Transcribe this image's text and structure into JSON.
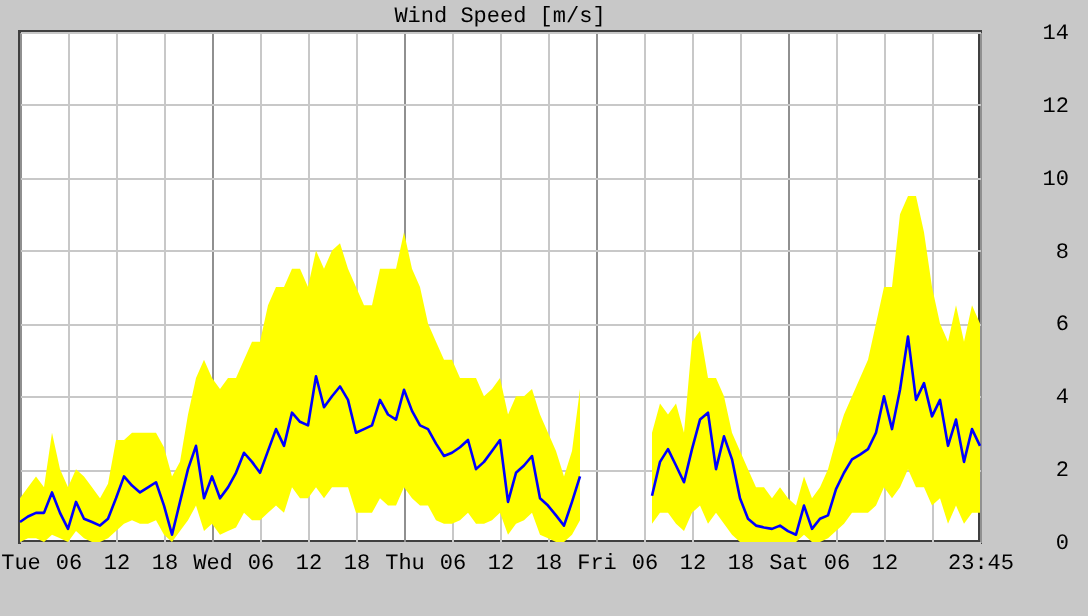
{
  "chart_data": {
    "type": "line",
    "title": "Wind Speed [m/s]",
    "categories": [
      "Tue",
      null,
      null,
      null,
      null,
      null,
      "06",
      null,
      null,
      null,
      null,
      null,
      "12",
      null,
      null,
      null,
      null,
      null,
      "18",
      null,
      null,
      null,
      null,
      null,
      "Wed",
      null,
      null,
      null,
      null,
      null,
      "06",
      null,
      null,
      null,
      null,
      null,
      "12",
      null,
      null,
      null,
      null,
      null,
      "18",
      null,
      null,
      null,
      null,
      null,
      "Thu",
      null,
      null,
      null,
      null,
      null,
      "06",
      null,
      null,
      null,
      null,
      null,
      "12",
      null,
      null,
      null,
      null,
      null,
      "18",
      null,
      null,
      null,
      null,
      null,
      "Fri",
      null,
      null,
      null,
      null,
      null,
      "06",
      null,
      null,
      null,
      null,
      null,
      "12",
      null,
      null,
      null,
      null,
      null,
      "18",
      null,
      null,
      null,
      null,
      null,
      "Sat",
      null,
      null,
      null,
      null,
      null,
      "06",
      null,
      null,
      null,
      null,
      null,
      "12",
      null,
      null,
      null,
      null,
      null,
      null,
      null,
      null,
      null,
      null,
      null,
      "23:45"
    ],
    "ylim": [
      0,
      14
    ],
    "yticks": [
      0,
      2,
      4,
      6,
      8,
      10,
      12,
      14
    ],
    "grid": true,
    "series": [
      {
        "color": "#0000ff",
        "values": [
          0.55,
          0.7,
          0.8,
          0.8,
          1.36,
          0.8,
          0.36,
          1.1,
          0.64,
          0.55,
          0.45,
          0.64,
          1.2,
          1.8,
          1.55,
          1.36,
          1.5,
          1.64,
          1.0,
          0.2,
          1.1,
          2.0,
          2.64,
          1.2,
          1.8,
          1.2,
          1.5,
          1.9,
          2.45,
          2.2,
          1.9,
          2.5,
          3.1,
          2.64,
          3.55,
          3.3,
          3.2,
          4.55,
          3.7,
          4.0,
          4.27,
          3.9,
          3.0,
          3.1,
          3.2,
          3.9,
          3.5,
          3.36,
          4.18,
          3.6,
          3.2,
          3.1,
          2.7,
          2.36,
          2.45,
          2.6,
          2.8,
          2.0,
          2.2,
          2.5,
          2.8,
          1.1,
          1.9,
          2.1,
          2.36,
          1.2,
          1.0,
          0.73,
          0.45,
          1.1,
          1.8,
          null,
          null,
          null,
          null,
          null,
          null,
          null,
          null,
          1.27,
          2.2,
          2.55,
          2.1,
          1.64,
          2.55,
          3.36,
          3.55,
          2.0,
          2.9,
          2.27,
          1.2,
          0.64,
          0.45,
          0.4,
          0.36,
          0.45,
          0.3,
          0.2,
          1.0,
          0.36,
          0.64,
          0.73,
          1.45,
          1.9,
          2.27,
          2.4,
          2.55,
          3.0,
          4.0,
          3.1,
          4.18,
          5.64,
          3.9,
          4.36,
          3.45,
          3.9,
          2.64,
          3.36,
          2.2,
          3.1,
          2.64
        ],
        "lower": [
          0,
          0.1,
          0.1,
          0,
          0.2,
          0.1,
          0,
          0.3,
          0.1,
          0,
          0,
          0.1,
          0.3,
          0.5,
          0.6,
          0.5,
          0.5,
          0.6,
          0.2,
          0,
          0.3,
          0.6,
          1.0,
          0.3,
          0.5,
          0.2,
          0.3,
          0.4,
          0.8,
          0.6,
          0.6,
          0.8,
          1.0,
          0.8,
          1.5,
          1.2,
          1.2,
          1.5,
          1.2,
          1.5,
          1.5,
          1.5,
          0.8,
          0.8,
          0.8,
          1.2,
          1.0,
          1.0,
          1.5,
          1.2,
          1.0,
          1.0,
          0.6,
          0.5,
          0.5,
          0.6,
          0.8,
          0.5,
          0.5,
          0.6,
          0.8,
          0.2,
          0.5,
          0.6,
          0.8,
          0.2,
          0.1,
          0,
          0,
          0.2,
          0.6,
          null,
          null,
          null,
          null,
          null,
          null,
          null,
          null,
          0.5,
          0.8,
          0.8,
          0.5,
          0.3,
          0.8,
          1.0,
          0.5,
          0.8,
          0.5,
          0.2,
          0,
          0,
          0,
          0,
          0,
          0,
          0,
          0,
          0.2,
          0,
          0,
          0.1,
          0.3,
          0.5,
          0.8,
          0.8,
          0.8,
          1.0,
          1.5,
          1.2,
          1.5,
          2.0,
          1.5,
          1.5,
          1.0,
          1.2,
          0.5,
          1.0,
          0.5,
          0.8,
          0.8
        ],
        "upper": [
          1.2,
          1.5,
          1.8,
          1.5,
          3.0,
          2.0,
          1.5,
          2.0,
          1.8,
          1.5,
          1.2,
          1.6,
          2.8,
          2.8,
          3.0,
          3.0,
          3.0,
          3.0,
          2.6,
          1.8,
          2.2,
          3.5,
          4.5,
          5.0,
          4.5,
          4.2,
          4.5,
          4.5,
          5.0,
          5.5,
          5.5,
          6.5,
          7.0,
          7.0,
          7.5,
          7.5,
          7.0,
          8.0,
          7.5,
          8.0,
          8.2,
          7.5,
          7.0,
          6.5,
          6.5,
          7.5,
          7.5,
          7.5,
          8.5,
          7.5,
          7.0,
          6.0,
          5.5,
          5.0,
          5.0,
          4.5,
          4.5,
          4.5,
          4.0,
          4.2,
          4.5,
          3.5,
          4.0,
          4.0,
          4.2,
          3.5,
          3.0,
          2.5,
          1.8,
          2.5,
          4.2,
          null,
          null,
          null,
          null,
          null,
          null,
          null,
          null,
          3.0,
          3.8,
          3.5,
          3.8,
          3.0,
          5.5,
          5.8,
          4.5,
          4.5,
          4.0,
          3.0,
          2.5,
          2.0,
          1.5,
          1.5,
          1.2,
          1.5,
          1.2,
          1.0,
          1.8,
          1.2,
          1.5,
          2.0,
          2.8,
          3.5,
          4.0,
          4.5,
          5.0,
          6.0,
          7.0,
          7.0,
          9.0,
          9.5,
          9.5,
          8.5,
          7.0,
          6.0,
          5.5,
          6.5,
          5.5,
          6.5,
          6.0
        ]
      }
    ]
  }
}
